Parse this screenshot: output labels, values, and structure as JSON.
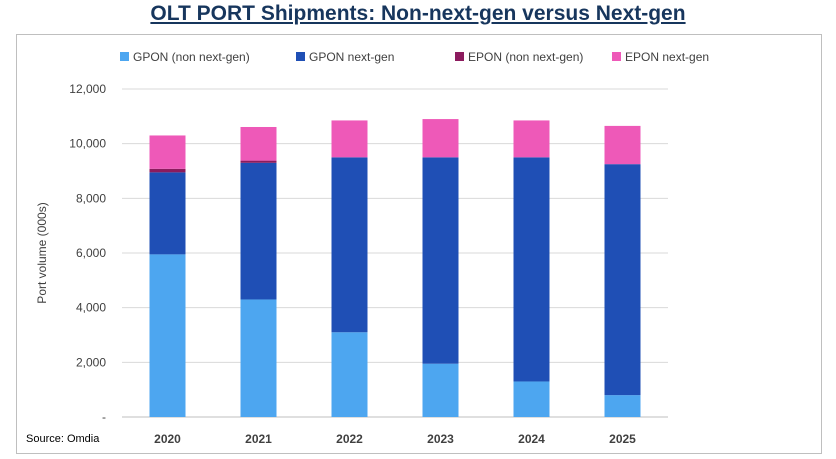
{
  "title": "OLT PORT Shipments: Non-next-gen versus Next-gen",
  "source": "Source: Omdia",
  "chart_data": {
    "type": "bar",
    "stacked": true,
    "categories": [
      "2020",
      "2021",
      "2022",
      "2023",
      "2024",
      "2025"
    ],
    "series": [
      {
        "name": "GPON (non next-gen)",
        "color": "#4da6f0",
        "values": [
          5950,
          4300,
          3100,
          1950,
          1300,
          800
        ]
      },
      {
        "name": "GPON next-gen",
        "color": "#1f4fb5",
        "values": [
          3000,
          5000,
          6400,
          7550,
          8200,
          8450
        ]
      },
      {
        "name": "EPON (non next-gen)",
        "color": "#8c1b5e",
        "values": [
          130,
          80,
          0,
          0,
          0,
          0
        ]
      },
      {
        "name": "EPON next-gen",
        "color": "#ee59b8",
        "values": [
          1220,
          1230,
          1350,
          1400,
          1350,
          1400
        ]
      }
    ],
    "yticks": [
      "-",
      "2,000",
      "4,000",
      "6,000",
      "8,000",
      "10,000",
      "12,000"
    ],
    "ylim": [
      0,
      12000
    ],
    "ylabel": "Port volume (000s)",
    "xlabel": "",
    "grid": true,
    "legend": "top"
  }
}
